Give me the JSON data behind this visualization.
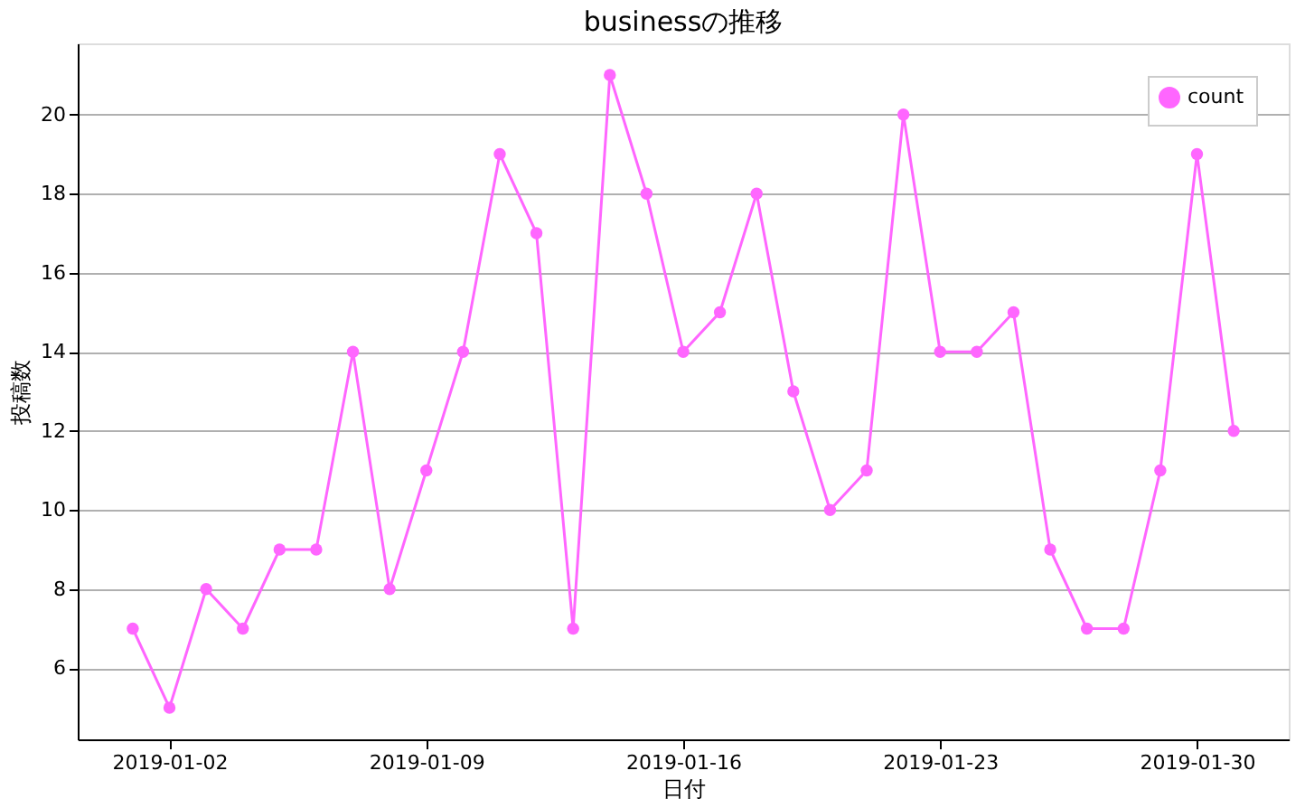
{
  "chart_data": {
    "type": "line",
    "title": "businessの推移",
    "xlabel": "日付",
    "ylabel": "投稿数",
    "x": [
      "2019-01-01",
      "2019-01-02",
      "2019-01-03",
      "2019-01-04",
      "2019-01-05",
      "2019-01-06",
      "2019-01-07",
      "2019-01-08",
      "2019-01-09",
      "2019-01-10",
      "2019-01-11",
      "2019-01-12",
      "2019-01-13",
      "2019-01-14",
      "2019-01-15",
      "2019-01-16",
      "2019-01-17",
      "2019-01-18",
      "2019-01-19",
      "2019-01-20",
      "2019-01-21",
      "2019-01-22",
      "2019-01-23",
      "2019-01-24",
      "2019-01-25",
      "2019-01-26",
      "2019-01-27",
      "2019-01-28",
      "2019-01-29",
      "2019-01-30",
      "2019-01-31"
    ],
    "series": [
      {
        "name": "count",
        "color": "#ff66ff",
        "values": [
          7,
          5,
          8,
          7,
          9,
          9,
          14,
          8,
          11,
          14,
          19,
          17,
          7,
          21,
          18,
          14,
          15,
          18,
          13,
          10,
          11,
          20,
          14,
          14,
          15,
          9,
          7,
          7,
          11,
          19,
          12
        ]
      }
    ],
    "xlim": [
      "2018-12-30T12:00",
      "2019-02-01T12:00"
    ],
    "xticks": [
      {
        "value": "2019-01-02",
        "label": "2019-01-02"
      },
      {
        "value": "2019-01-09",
        "label": "2019-01-09"
      },
      {
        "value": "2019-01-16",
        "label": "2019-01-16"
      },
      {
        "value": "2019-01-23",
        "label": "2019-01-23"
      },
      {
        "value": "2019-01-30",
        "label": "2019-01-30"
      }
    ],
    "ylim": [
      4.2,
      21.8
    ],
    "yticks": [
      6,
      8,
      10,
      12,
      14,
      16,
      18,
      20
    ],
    "grid": "y",
    "legend": "top right",
    "marker": "circle",
    "line_style": "solid"
  }
}
